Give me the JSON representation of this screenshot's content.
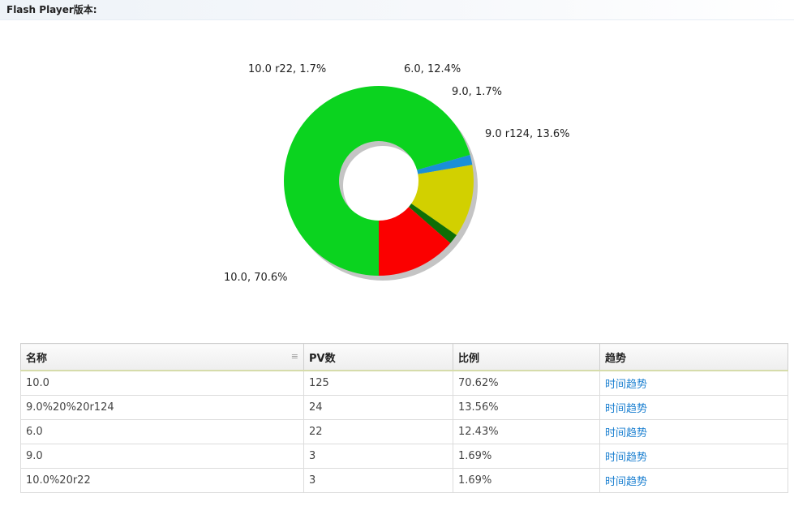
{
  "header": {
    "title": "Flash Player版本:"
  },
  "chart_data": {
    "type": "pie",
    "title": "",
    "donut": true,
    "slices": [
      {
        "label": "10.0, 70.6%",
        "name": "10.0",
        "value": 70.6,
        "color": "#0bd31f"
      },
      {
        "label": "10.0 r22, 1.7%",
        "name": "10.0 r22",
        "value": 1.7,
        "color": "#1a8fd8"
      },
      {
        "label": "6.0, 12.4%",
        "name": "6.0",
        "value": 12.4,
        "color": "#d2d000"
      },
      {
        "label": "9.0, 1.7%",
        "name": "9.0",
        "value": 1.7,
        "color": "#0e6e06"
      },
      {
        "label": "9.0  r124, 13.6%",
        "name": "9.0 r124",
        "value": 13.6,
        "color": "#fb0000"
      }
    ]
  },
  "table": {
    "columns": [
      {
        "label": "名称",
        "sort_icon": "≡"
      },
      {
        "label": "PV数"
      },
      {
        "label": "比例"
      },
      {
        "label": "趋势"
      }
    ],
    "rows": [
      {
        "name": "10.0",
        "pv": "125",
        "ratio": "70.62%",
        "trend": "时间趋势"
      },
      {
        "name": "9.0%20%20r124",
        "pv": "24",
        "ratio": "13.56%",
        "trend": "时间趋势"
      },
      {
        "name": "6.0",
        "pv": "22",
        "ratio": "12.43%",
        "trend": "时间趋势"
      },
      {
        "name": "9.0",
        "pv": "3",
        "ratio": "1.69%",
        "trend": "时间趋势"
      },
      {
        "name": "10.0%20r22",
        "pv": "3",
        "ratio": "1.69%",
        "trend": "时间趋势"
      }
    ]
  },
  "colors": {
    "link": "#1a7fd0",
    "shadow": "#c4c4c4"
  }
}
